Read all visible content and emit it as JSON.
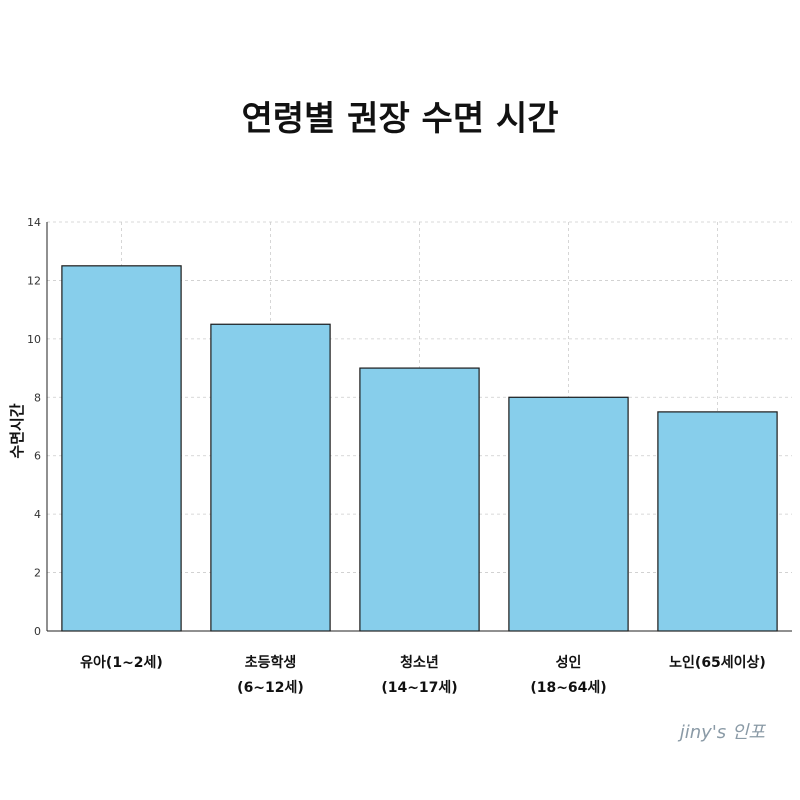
{
  "chart_data": {
    "type": "bar",
    "title": "연령별 권장 수면 시간",
    "ylabel": "수면시간",
    "xlabel": "",
    "ylim": [
      0,
      14
    ],
    "yticks": [
      0,
      2,
      4,
      6,
      8,
      10,
      12,
      14
    ],
    "grid": true,
    "categories": [
      [
        "유아(1~2세)"
      ],
      [
        "초등학생",
        "(6~12세)"
      ],
      [
        "청소년",
        "(14~17세)"
      ],
      [
        "성인",
        "(18~64세)"
      ],
      [
        "노인(65세이상)"
      ]
    ],
    "values": [
      12.5,
      10.5,
      9,
      8,
      7.5
    ],
    "bar_color": "#87CEEB",
    "bar_edge_color": "#1a1a1a"
  },
  "watermark": "jiny's 인포"
}
